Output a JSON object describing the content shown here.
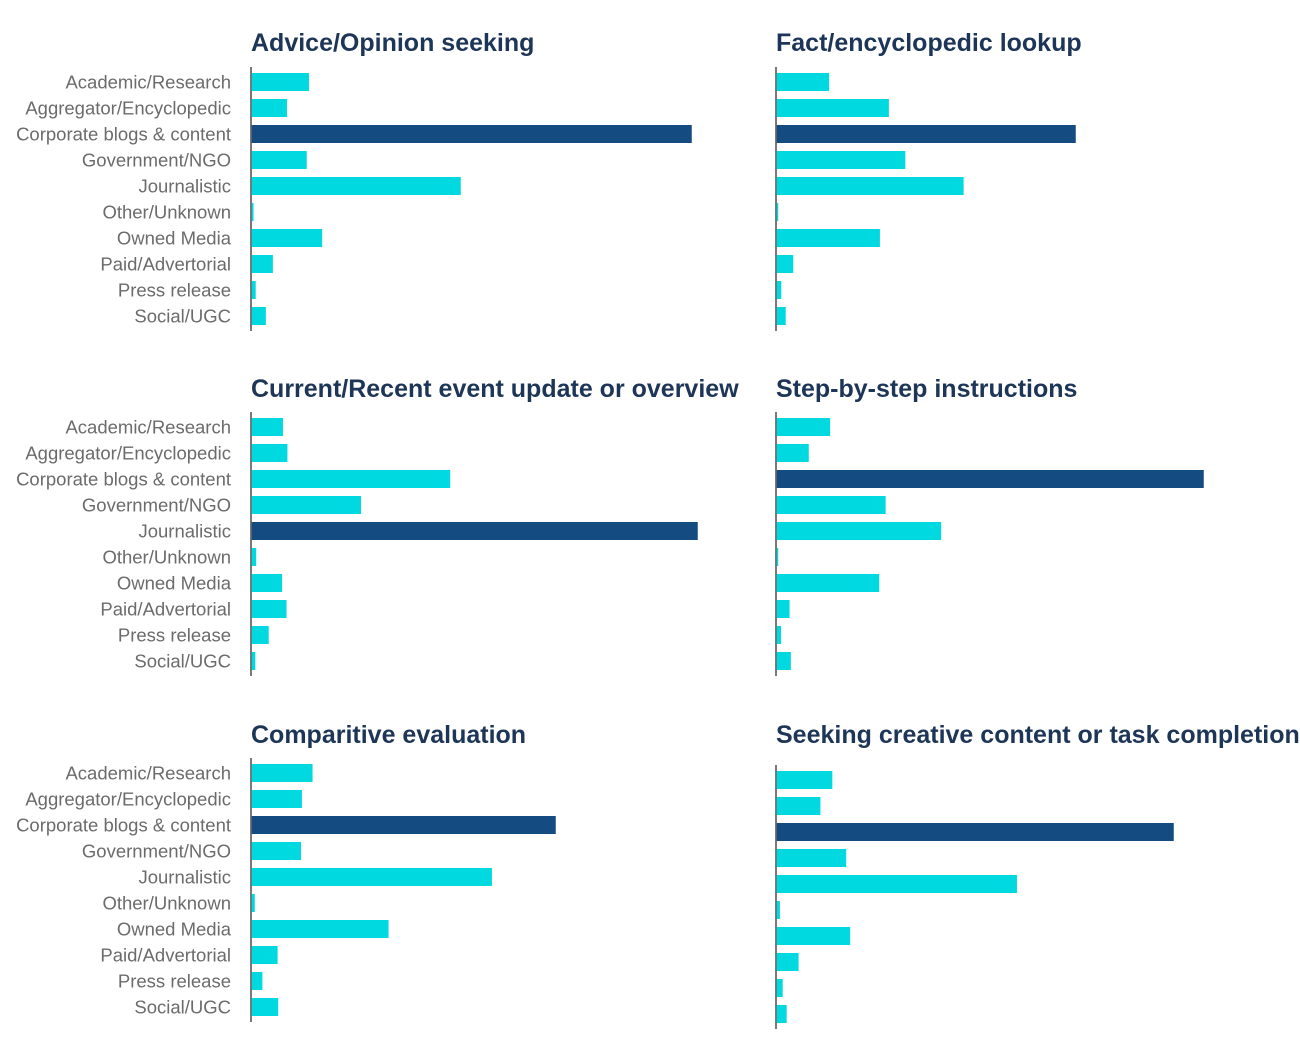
{
  "colors": {
    "default_bar": "#00d9e0",
    "highlight_bar": "#144b80",
    "title": "#1d3557",
    "label": "#6b6b6b",
    "axis": "#4d4d4d"
  },
  "chart_data": [
    {
      "type": "bar",
      "orientation": "horizontal",
      "title": "Advice/Opinion seeking",
      "categories": [
        "Academic/Research",
        "Aggregator/Encyclopedic",
        "Corporate blogs & content",
        "Government/NGO",
        "Journalistic",
        "Other/Unknown",
        "Owned Media",
        "Paid/Advertorial",
        "Press release",
        "Social/UGC"
      ],
      "values": [
        13,
        8,
        100,
        12.5,
        47.5,
        0.4,
        16,
        4.8,
        0.9,
        3.2
      ],
      "highlight_index": 2,
      "xlim": [
        0,
        100
      ]
    },
    {
      "type": "bar",
      "orientation": "horizontal",
      "title": "Fact/encyclopedic lookup",
      "categories": [
        "Academic/Research",
        "Aggregator/Encyclopedic",
        "Corporate blogs & content",
        "Government/NGO",
        "Journalistic",
        "Other/Unknown",
        "Owned Media",
        "Paid/Advertorial",
        "Press release",
        "Social/UGC"
      ],
      "values": [
        17.5,
        37.5,
        100,
        43,
        62.5,
        0.3,
        34.5,
        5.5,
        1.5,
        3
      ],
      "highlight_index": 2,
      "xlim": [
        0,
        100
      ]
    },
    {
      "type": "bar",
      "orientation": "horizontal",
      "title": "Current/Recent event update or overview",
      "categories": [
        "Academic/Research",
        "Aggregator/Encyclopedic",
        "Corporate blogs & content",
        "Government/NGO",
        "Journalistic",
        "Other/Unknown",
        "Owned Media",
        "Paid/Advertorial",
        "Press release",
        "Social/UGC"
      ],
      "values": [
        7,
        8,
        44.5,
        24.5,
        100,
        1,
        6.8,
        7.8,
        3.8,
        0.8
      ],
      "highlight_index": 4,
      "xlim": [
        0,
        100
      ]
    },
    {
      "type": "bar",
      "orientation": "horizontal",
      "title": "Step-by-step instructions",
      "categories": [
        "Academic/Research",
        "Aggregator/Encyclopedic",
        "Corporate blogs & content",
        "Government/NGO",
        "Journalistic",
        "Other/Unknown",
        "Owned Media",
        "Paid/Advertorial",
        "Press release",
        "Social/UGC"
      ],
      "values": [
        12.5,
        7.5,
        100,
        25.5,
        38.5,
        0.3,
        24,
        3,
        1,
        3.3
      ],
      "highlight_index": 2,
      "xlim": [
        0,
        100
      ]
    },
    {
      "type": "bar",
      "orientation": "horizontal",
      "title": "Comparitive evaluation",
      "categories": [
        "Academic/Research",
        "Aggregator/Encyclopedic",
        "Corporate blogs & content",
        "Government/NGO",
        "Journalistic",
        "Other/Unknown",
        "Owned Media",
        "Paid/Advertorial",
        "Press release",
        "Social/UGC"
      ],
      "values": [
        20,
        16.5,
        100,
        16.2,
        79,
        1,
        45,
        8.5,
        3.5,
        8.7
      ],
      "highlight_index": 2,
      "xlim": [
        0,
        100
      ]
    },
    {
      "type": "bar",
      "orientation": "horizontal",
      "title": "Seeking creative content or task completion",
      "categories": [
        "Academic/Research",
        "Aggregator/Encyclopedic",
        "Corporate blogs & content",
        "Government/NGO",
        "Journalistic",
        "Other/Unknown",
        "Owned Media",
        "Paid/Advertorial",
        "Press release",
        "Social/UGC"
      ],
      "values": [
        14,
        11,
        100,
        17.5,
        60.5,
        0.8,
        18.5,
        5.5,
        1.5,
        2.5
      ],
      "highlight_index": 2,
      "xlim": [
        0,
        100
      ]
    }
  ]
}
